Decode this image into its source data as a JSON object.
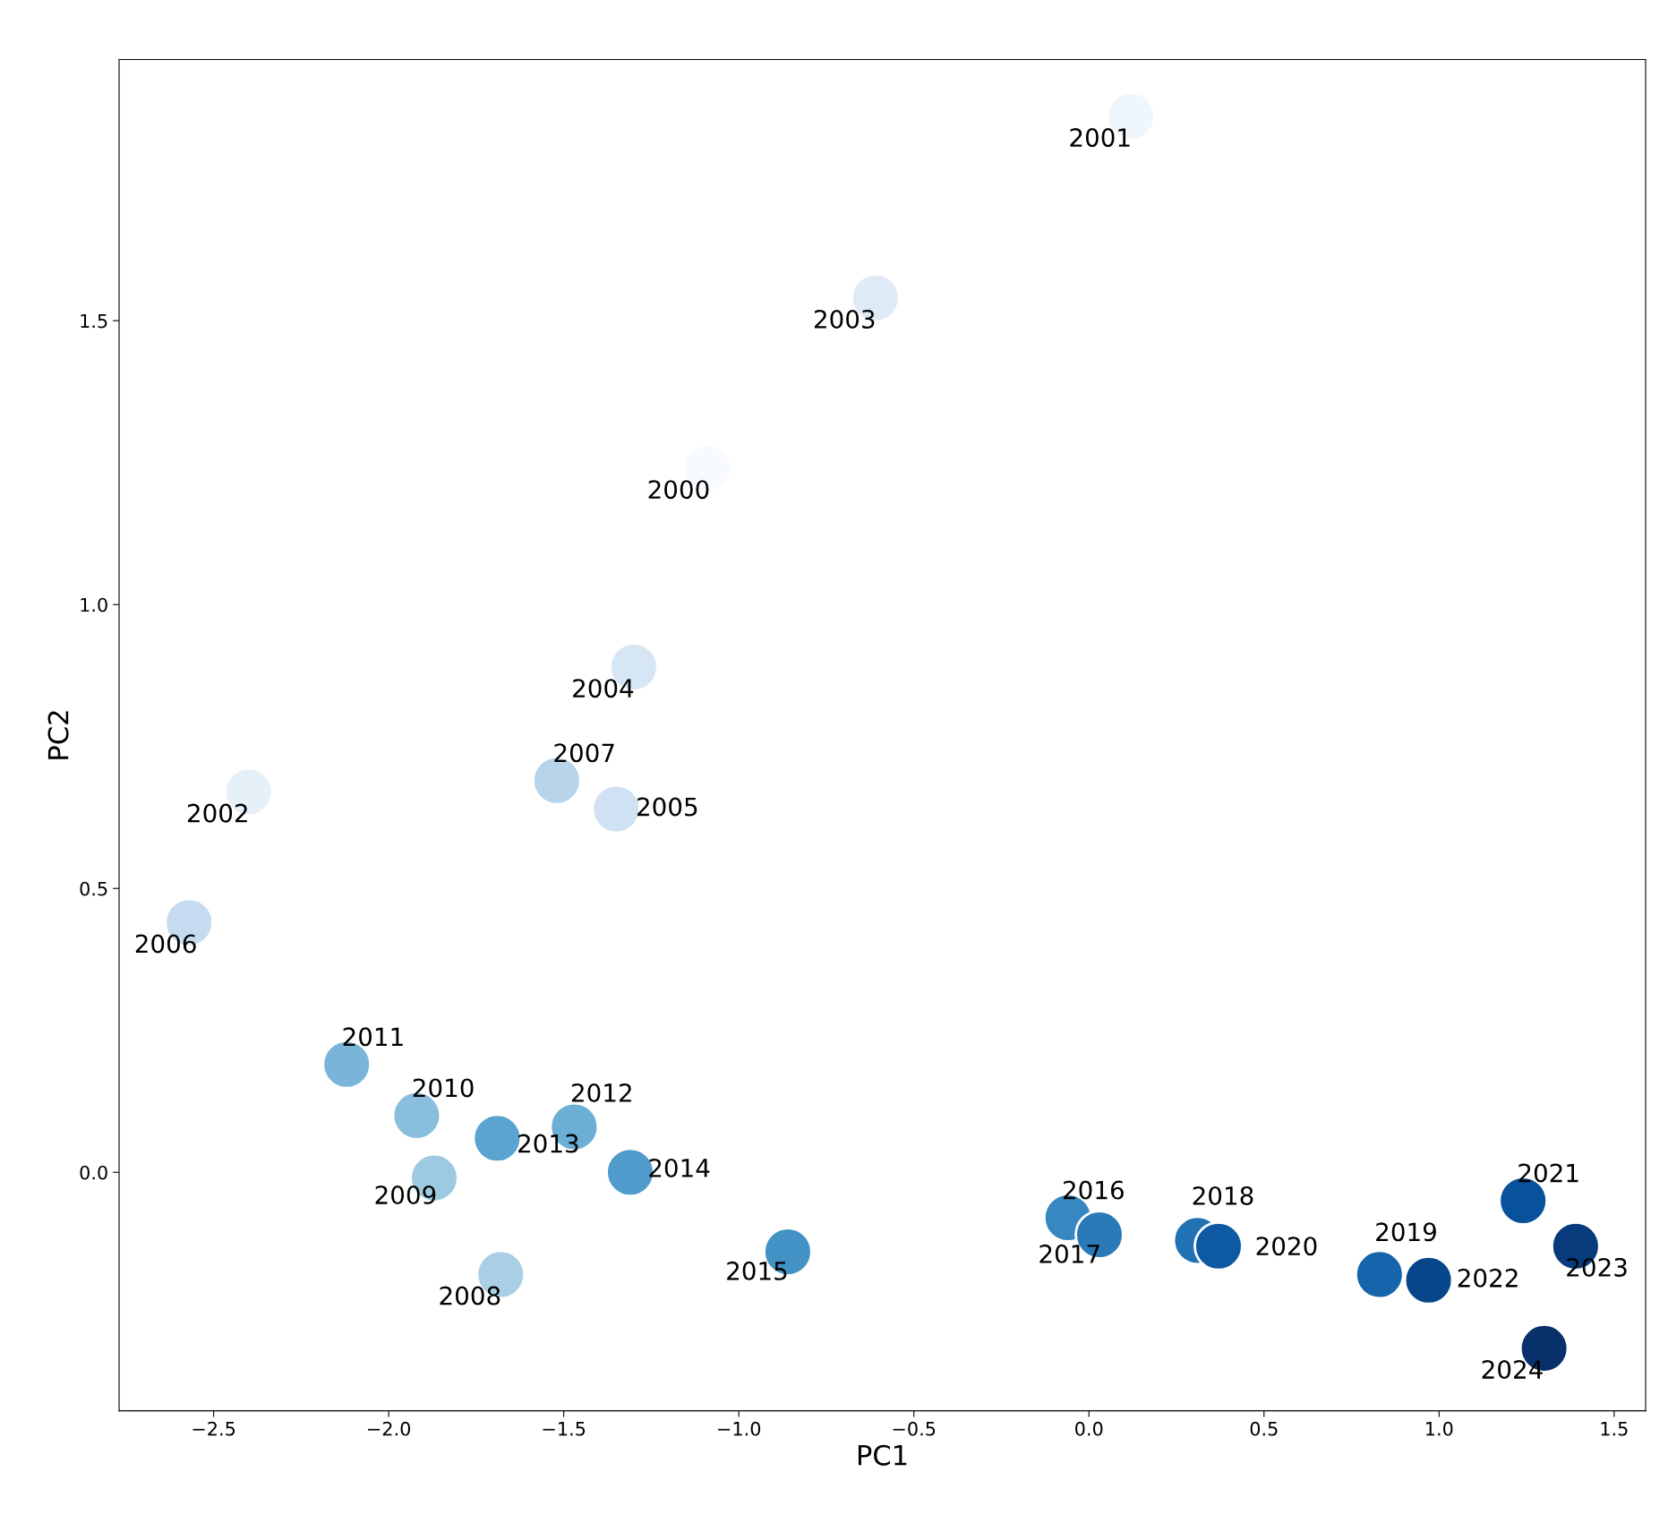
{
  "chart_data": {
    "type": "scatter",
    "xlabel": "PC1",
    "ylabel": "PC2",
    "xlim": [
      -2.77,
      1.59
    ],
    "ylim": [
      -0.42,
      1.96
    ],
    "xticks": [
      {
        "value": -2.5,
        "label": "−2.5"
      },
      {
        "value": -2.0,
        "label": "−2.0"
      },
      {
        "value": -1.5,
        "label": "−1.5"
      },
      {
        "value": -1.0,
        "label": "−1.0"
      },
      {
        "value": -0.5,
        "label": "−0.5"
      },
      {
        "value": 0.0,
        "label": "0.0"
      },
      {
        "value": 0.5,
        "label": "0.5"
      },
      {
        "value": 1.0,
        "label": "1.0"
      },
      {
        "value": 1.5,
        "label": "1.5"
      }
    ],
    "yticks": [
      {
        "value": 0.0,
        "label": "0.0"
      },
      {
        "value": 0.5,
        "label": "0.5"
      },
      {
        "value": 1.0,
        "label": "1.0"
      },
      {
        "value": 1.5,
        "label": "1.5"
      }
    ],
    "grid": false,
    "marker": "circle",
    "x": [
      -1.09,
      0.12,
      -2.4,
      -0.61,
      -1.3,
      -1.35,
      -2.57,
      -1.52,
      -1.68,
      -1.87,
      -1.92,
      -2.12,
      -1.47,
      -1.69,
      -1.31,
      -0.86,
      -0.06,
      0.03,
      0.31,
      0.83,
      0.37,
      1.24,
      0.97,
      1.39,
      1.3
    ],
    "values": [
      1.24,
      1.86,
      0.67,
      1.54,
      0.89,
      0.64,
      0.44,
      0.69,
      -0.18,
      -0.01,
      0.1,
      0.19,
      0.08,
      0.06,
      0.0,
      -0.14,
      -0.08,
      -0.11,
      -0.12,
      -0.18,
      -0.13,
      -0.05,
      -0.19,
      -0.13,
      -0.31
    ],
    "colors": [
      "#f7fbff",
      "#eff6fc",
      "#e6f0f9",
      "#deebf7",
      "#d6e6f4",
      "#cfe1f2",
      "#c6dbef",
      "#b7d4ea",
      "#a9cfe5",
      "#9ecae1",
      "#89bedc",
      "#79b5d9",
      "#6baed6",
      "#5ba3d0",
      "#4f9bcb",
      "#4292c6",
      "#3787c0",
      "#2a7ab9",
      "#2171b5",
      "#1664ab",
      "#0d5aa3",
      "#08519c",
      "#08468b",
      "#083b7b",
      "#08306b"
    ],
    "annotations": [
      {
        "text": "2000",
        "x": -1.09,
        "y": 1.24
      },
      {
        "text": "2001",
        "x": 0.12,
        "y": 1.86
      },
      {
        "text": "2002",
        "x": -2.4,
        "y": 0.67
      },
      {
        "text": "2003",
        "x": -0.61,
        "y": 1.54
      },
      {
        "text": "2004",
        "x": -1.3,
        "y": 0.89
      },
      {
        "text": "2005",
        "x": -1.35,
        "y": 0.64
      },
      {
        "text": "2006",
        "x": -2.57,
        "y": 0.44
      },
      {
        "text": "2007",
        "x": -1.52,
        "y": 0.69
      },
      {
        "text": "2008",
        "x": -1.68,
        "y": -0.18
      },
      {
        "text": "2009",
        "x": -1.87,
        "y": -0.01
      },
      {
        "text": "2010",
        "x": -1.92,
        "y": 0.1
      },
      {
        "text": "2011",
        "x": -2.12,
        "y": 0.19
      },
      {
        "text": "2012",
        "x": -1.47,
        "y": 0.08
      },
      {
        "text": "2013",
        "x": -1.69,
        "y": 0.06
      },
      {
        "text": "2014",
        "x": -1.31,
        "y": 0.0
      },
      {
        "text": "2015",
        "x": -0.86,
        "y": -0.14
      },
      {
        "text": "2016",
        "x": -0.06,
        "y": -0.08
      },
      {
        "text": "2017",
        "x": 0.03,
        "y": -0.11
      },
      {
        "text": "2018",
        "x": 0.31,
        "y": -0.12
      },
      {
        "text": "2019",
        "x": 0.83,
        "y": -0.18
      },
      {
        "text": "2020",
        "x": 0.37,
        "y": -0.13
      },
      {
        "text": "2021",
        "x": 1.24,
        "y": -0.05
      },
      {
        "text": "2022",
        "x": 0.97,
        "y": -0.19
      },
      {
        "text": "2023",
        "x": 1.39,
        "y": -0.13
      },
      {
        "text": "2024",
        "x": 1.3,
        "y": -0.31
      }
    ]
  }
}
